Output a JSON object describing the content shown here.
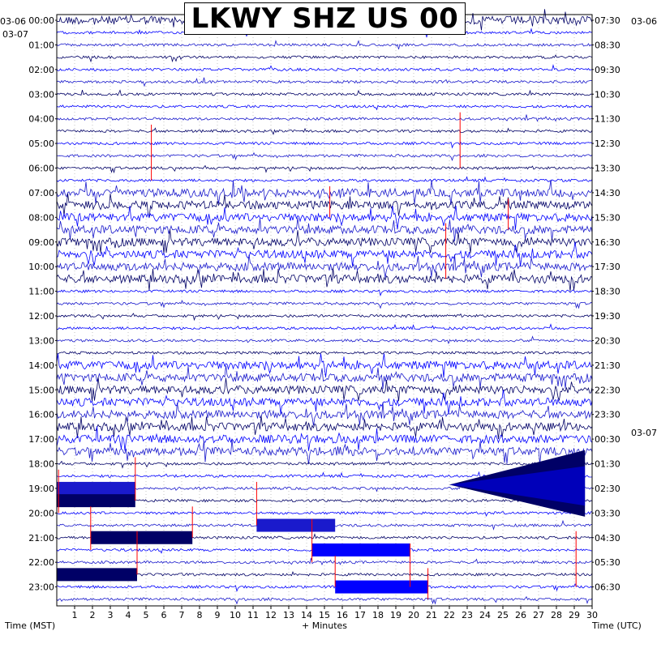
{
  "title": "LKWY SHZ US 00",
  "left_date_top": "03-06",
  "left_date_start": "03-07",
  "right_date_top": "03-06",
  "right_date_mid": "03-07",
  "x_axis_label": "+ Minutes",
  "left_axis_label": "Time (MST)",
  "right_axis_label": "Time (UTC)",
  "colors": {
    "trace_dark": "#000066",
    "trace_blue": "#0000ff",
    "trace_mid": "#1a1acc",
    "trigger": "#ff0000",
    "grid": "#888888"
  },
  "chart_data": {
    "type": "helicorder",
    "xlabel": "+ Minutes",
    "x_ticks": [
      "1",
      "2",
      "3",
      "4",
      "5",
      "6",
      "7",
      "8",
      "9",
      "10",
      "11",
      "12",
      "13",
      "14",
      "15",
      "16",
      "17",
      "18",
      "19",
      "20",
      "21",
      "22",
      "23",
      "24",
      "25",
      "26",
      "27",
      "28",
      "29",
      "30"
    ],
    "x_range": [
      0,
      30
    ],
    "rows_per_hour": 2,
    "hour_labels_left": [
      "00:00",
      "01:00",
      "02:00",
      "03:00",
      "04:00",
      "05:00",
      "06:00",
      "07:00",
      "08:00",
      "09:00",
      "10:00",
      "11:00",
      "12:00",
      "13:00",
      "14:00",
      "15:00",
      "16:00",
      "17:00",
      "18:00",
      "19:00",
      "20:00",
      "21:00",
      "22:00",
      "23:00"
    ],
    "hour_labels_right": [
      "07:30",
      "08:30",
      "09:30",
      "10:30",
      "11:30",
      "12:30",
      "13:30",
      "14:30",
      "15:30",
      "16:30",
      "17:30",
      "18:30",
      "19:30",
      "20:30",
      "21:30",
      "22:30",
      "23:30",
      "00:30",
      "01:30",
      "02:30",
      "03:30",
      "04:30",
      "05:30",
      "06:30"
    ],
    "noisy_rows": [
      0,
      14,
      15,
      16,
      17,
      18,
      19,
      20,
      21,
      28,
      29,
      30,
      31,
      32,
      33,
      34,
      35
    ],
    "saturated_blocks": [
      {
        "row": 38,
        "start_min": 0.0,
        "end_min": 4.4
      },
      {
        "row": 39,
        "start_min": 0.0,
        "end_min": 4.4
      },
      {
        "row": 41,
        "start_min": 11.2,
        "end_min": 15.6
      },
      {
        "row": 42,
        "start_min": 1.9,
        "end_min": 7.6
      },
      {
        "row": 43,
        "start_min": 14.3,
        "end_min": 19.8
      },
      {
        "row": 45,
        "start_min": 0.0,
        "end_min": 4.5
      },
      {
        "row": 46,
        "start_min": 15.6,
        "end_min": 20.8
      }
    ],
    "trigger_marks": [
      {
        "row": 8,
        "min": 22.6,
        "span": 4
      },
      {
        "row": 9,
        "min": 5.3,
        "span": 4
      },
      {
        "row": 14,
        "min": 15.3,
        "span": 2
      },
      {
        "row": 15,
        "min": 25.3,
        "span": 2
      },
      {
        "row": 17,
        "min": 21.8,
        "span": 4
      },
      {
        "row": 36,
        "min": 4.4,
        "span": 3
      },
      {
        "row": 37,
        "min": 0.1,
        "span": 3
      },
      {
        "row": 38,
        "min": 11.2,
        "span": 3
      },
      {
        "row": 40,
        "min": 1.9,
        "span": 3
      },
      {
        "row": 40,
        "min": 7.6,
        "span": 2
      },
      {
        "row": 41,
        "min": 14.3,
        "span": 3
      },
      {
        "row": 42,
        "min": 4.5,
        "span": 3
      },
      {
        "row": 43,
        "min": 19.8,
        "span": 3
      },
      {
        "row": 44,
        "min": 15.6,
        "span": 2
      },
      {
        "row": 45,
        "min": 20.8,
        "span": 2
      },
      {
        "row": 42,
        "min": 29.1,
        "span": 4
      }
    ]
  }
}
